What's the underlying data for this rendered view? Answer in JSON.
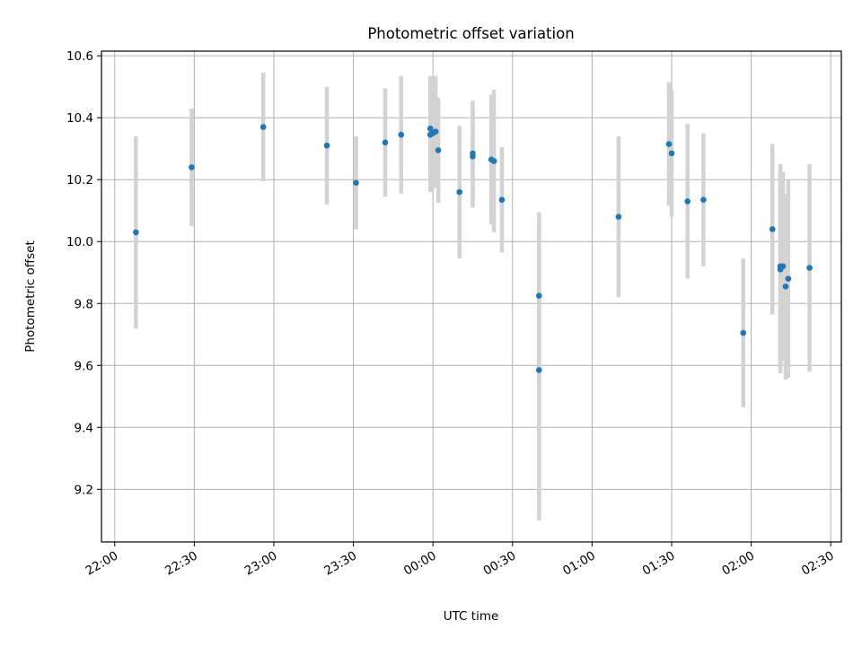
{
  "chart_data": {
    "type": "scatter",
    "title": "Photometric offset variation",
    "xlabel": "UTC time",
    "ylabel": "Photometric offset",
    "x_ticks": [
      "22:00",
      "22:30",
      "23:00",
      "23:30",
      "00:00",
      "00:30",
      "01:00",
      "01:30",
      "02:00",
      "02:30"
    ],
    "y_ticks": [
      "9.2",
      "9.4",
      "9.6",
      "9.8",
      "10.0",
      "10.2",
      "10.4",
      "10.6"
    ],
    "xlim": [
      "21:55",
      "02:34"
    ],
    "ylim": [
      9.03,
      10.615
    ],
    "grid": true,
    "colors": {
      "point": "#1f77b4",
      "errorbar": "#d3d3d3",
      "grid": "#b0b0b0"
    },
    "points": [
      {
        "x": "22:08",
        "y": 10.03,
        "yerr": 0.31
      },
      {
        "x": "22:29",
        "y": 10.24,
        "yerr": 0.19
      },
      {
        "x": "22:56",
        "y": 10.37,
        "yerr": 0.175
      },
      {
        "x": "23:20",
        "y": 10.31,
        "yerr": 0.19
      },
      {
        "x": "23:31",
        "y": 10.19,
        "yerr": 0.15
      },
      {
        "x": "23:42",
        "y": 10.32,
        "yerr": 0.175
      },
      {
        "x": "23:48",
        "y": 10.345,
        "yerr": 0.19
      },
      {
        "x": "23:59",
        "y": 10.365,
        "yerr": 0.17
      },
      {
        "x": "23:59",
        "y": 10.345,
        "yerr": 0.185
      },
      {
        "x": "00:00",
        "y": 10.35,
        "yerr": 0.18
      },
      {
        "x": "00:01",
        "y": 10.355,
        "yerr": 0.18
      },
      {
        "x": "00:02",
        "y": 10.295,
        "yerr": 0.17
      },
      {
        "x": "00:10",
        "y": 10.16,
        "yerr": 0.215
      },
      {
        "x": "00:15",
        "y": 10.275,
        "yerr": 0.165
      },
      {
        "x": "00:15",
        "y": 10.285,
        "yerr": 0.17
      },
      {
        "x": "00:22",
        "y": 10.265,
        "yerr": 0.21
      },
      {
        "x": "00:23",
        "y": 10.26,
        "yerr": 0.23
      },
      {
        "x": "00:26",
        "y": 10.135,
        "yerr": 0.17
      },
      {
        "x": "00:40",
        "y": 9.825,
        "yerr": 0.27
      },
      {
        "x": "00:40",
        "y": 9.585,
        "yerr": 0.485
      },
      {
        "x": "01:10",
        "y": 10.08,
        "yerr": 0.26
      },
      {
        "x": "01:29",
        "y": 10.315,
        "yerr": 0.2
      },
      {
        "x": "01:30",
        "y": 10.285,
        "yerr": 0.205
      },
      {
        "x": "01:36",
        "y": 10.13,
        "yerr": 0.25
      },
      {
        "x": "01:42",
        "y": 10.135,
        "yerr": 0.215
      },
      {
        "x": "01:57",
        "y": 9.705,
        "yerr": 0.24
      },
      {
        "x": "02:08",
        "y": 10.04,
        "yerr": 0.275
      },
      {
        "x": "02:11",
        "y": 9.91,
        "yerr": 0.335
      },
      {
        "x": "02:11",
        "y": 9.92,
        "yerr": 0.33
      },
      {
        "x": "02:12",
        "y": 9.92,
        "yerr": 0.305
      },
      {
        "x": "02:13",
        "y": 9.855,
        "yerr": 0.3
      },
      {
        "x": "02:14",
        "y": 9.88,
        "yerr": 0.32
      },
      {
        "x": "02:22",
        "y": 9.915,
        "yerr": 0.335
      }
    ]
  }
}
